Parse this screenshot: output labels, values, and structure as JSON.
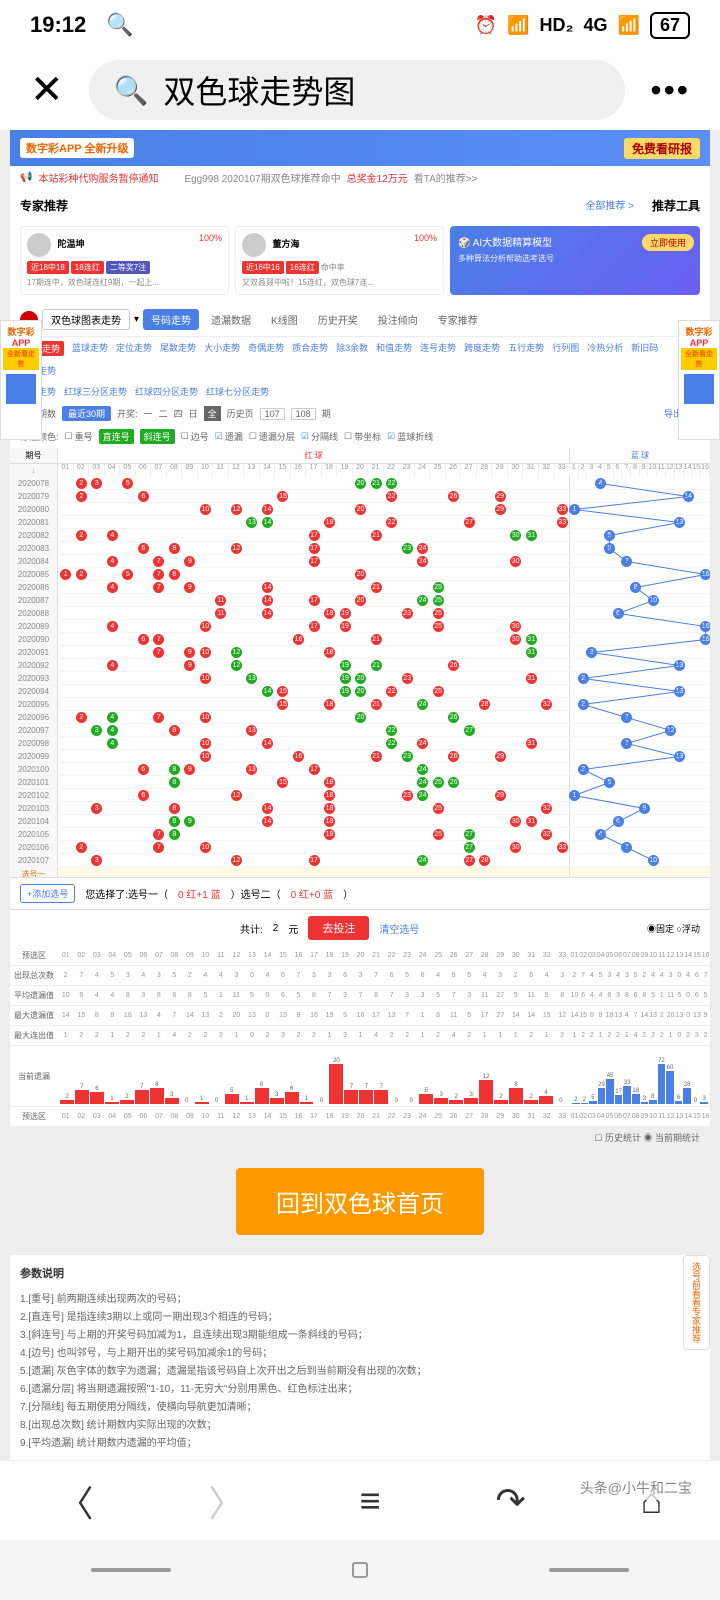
{
  "status": {
    "time": "19:12",
    "hd": "HD₂",
    "net": "4G",
    "battery": "67"
  },
  "search": {
    "placeholder": "双色球走势图"
  },
  "banner": {
    "app": "数字彩APP 全新升级",
    "promo": "免费看研报"
  },
  "notice": {
    "left": "本站彩种代购服务暂停通知",
    "mid": "Egg998 2020107期双色球推荐命中",
    "prize": "总奖金12万元",
    "link": "看TA的推荐>>"
  },
  "expert": {
    "title": "专家推荐",
    "all": "全部推荐 >",
    "tool": "推荐工具"
  },
  "experts": [
    {
      "name": "陀温坤",
      "pct": "100%",
      "tag1": "近18中18",
      "tag2": "18连红",
      "tag3": "二等奖7注",
      "desc": "17期连中，双色球连红9期，一起上..."
    },
    {
      "name": "董方海",
      "pct": "100%",
      "tag1": "近16中16",
      "tag2": "16连红",
      "sub": "命中率",
      "desc": "又双叒叕中啦！15连红，双色球7连..."
    }
  ],
  "ai": {
    "title": "AI大数据精算模型",
    "btn": "立即使用",
    "sub": "多种算法分析帮助选考选号"
  },
  "sideAd": {
    "line1": "数字彩",
    "line2": "APP",
    "line3": "全新看走势"
  },
  "tabs": {
    "selector": "双色球图表走势",
    "items": [
      "号码走势",
      "遗漏数据",
      "K线图",
      "历史开奖",
      "投注倾向",
      "专家推荐"
    ]
  },
  "subTabs": [
    "基本走势",
    "蓝球走势",
    "定位走势",
    "尾数走势",
    "大小走势",
    "奇偶走势",
    "质合走势",
    "除3余数",
    "和值走势",
    "连号走势",
    "跨度走势",
    "五行走势",
    "行列图",
    "冷热分析",
    "新旧码",
    "重号走势"
  ],
  "subTabs2": [
    "红蓝走势",
    "红球三分区走势",
    "红球四分区走势",
    "红球七分区走势"
  ],
  "filters": {
    "period": "显示期数",
    "sel": "最近30期",
    "open": "开奖:",
    "hist": "历史页",
    "p1": "107",
    "p2": "108",
    "next": "期",
    "export": "导出走势"
  },
  "markLabel": "标注颜色:",
  "marks": [
    "重号",
    "直连号",
    "斜连号",
    "边号",
    "遗漏",
    "遗漏分层",
    "分隔线",
    "带坐标",
    "蓝球折线"
  ],
  "chartHead": {
    "period": "期号",
    "red": "红 球",
    "blue": "蓝 球"
  },
  "periods": [
    "2020078",
    "2020079",
    "2020080",
    "2020081",
    "2020082",
    "2020083",
    "2020084",
    "2020085",
    "2020086",
    "2020087",
    "2020088",
    "2020089",
    "2020090",
    "2020091",
    "2020092",
    "2020093",
    "2020094",
    "2020095",
    "2020096",
    "2020097",
    "2020098",
    "2020099",
    "2020100",
    "2020101",
    "2020102",
    "2020103",
    "2020104",
    "2020105",
    "2020106",
    "2020107"
  ],
  "selRows": [
    "选号一",
    "选号二"
  ],
  "redBalls": [
    [
      [
        2,
        "r"
      ],
      [
        3,
        "r"
      ],
      [
        5,
        "r"
      ],
      [
        20,
        "g"
      ],
      [
        21,
        "g"
      ],
      [
        22,
        "g"
      ]
    ],
    [
      [
        2,
        "r"
      ],
      [
        6,
        "r"
      ],
      [
        15,
        "r"
      ],
      [
        22,
        "r"
      ],
      [
        26,
        "r"
      ],
      [
        29,
        "r"
      ]
    ],
    [
      [
        10,
        "r"
      ],
      [
        12,
        "r"
      ],
      [
        14,
        "r"
      ],
      [
        20,
        "r"
      ],
      [
        29,
        "r"
      ],
      [
        33,
        "r"
      ]
    ],
    [
      [
        13,
        "g"
      ],
      [
        14,
        "g"
      ],
      [
        18,
        "r"
      ],
      [
        22,
        "r"
      ],
      [
        27,
        "r"
      ],
      [
        33,
        "r"
      ]
    ],
    [
      [
        2,
        "r"
      ],
      [
        4,
        "r"
      ],
      [
        17,
        "r"
      ],
      [
        21,
        "r"
      ],
      [
        30,
        "g"
      ],
      [
        31,
        "g"
      ]
    ],
    [
      [
        6,
        "r"
      ],
      [
        8,
        "r"
      ],
      [
        12,
        "r"
      ],
      [
        17,
        "r"
      ],
      [
        23,
        "g"
      ],
      [
        24,
        "r"
      ]
    ],
    [
      [
        4,
        "r"
      ],
      [
        7,
        "r"
      ],
      [
        9,
        "r"
      ],
      [
        17,
        "r"
      ],
      [
        24,
        "r"
      ],
      [
        30,
        "r"
      ]
    ],
    [
      [
        1,
        "r"
      ],
      [
        2,
        "r"
      ],
      [
        5,
        "r"
      ],
      [
        7,
        "r"
      ],
      [
        8,
        "r"
      ],
      [
        20,
        "r"
      ]
    ],
    [
      [
        4,
        "r"
      ],
      [
        7,
        "r"
      ],
      [
        9,
        "r"
      ],
      [
        14,
        "r"
      ],
      [
        21,
        "r"
      ],
      [
        25,
        "g"
      ]
    ],
    [
      [
        11,
        "r"
      ],
      [
        14,
        "r"
      ],
      [
        17,
        "r"
      ],
      [
        20,
        "r"
      ],
      [
        24,
        "g"
      ],
      [
        25,
        "g"
      ]
    ],
    [
      [
        11,
        "r"
      ],
      [
        14,
        "r"
      ],
      [
        18,
        "r"
      ],
      [
        19,
        "r"
      ],
      [
        23,
        "r"
      ],
      [
        25,
        "r"
      ]
    ],
    [
      [
        4,
        "r"
      ],
      [
        10,
        "r"
      ],
      [
        17,
        "r"
      ],
      [
        19,
        "r"
      ],
      [
        25,
        "r"
      ],
      [
        30,
        "r"
      ]
    ],
    [
      [
        6,
        "r"
      ],
      [
        7,
        "r"
      ],
      [
        16,
        "r"
      ],
      [
        21,
        "r"
      ],
      [
        30,
        "r"
      ],
      [
        31,
        "g"
      ]
    ],
    [
      [
        7,
        "r"
      ],
      [
        9,
        "r"
      ],
      [
        10,
        "r"
      ],
      [
        12,
        "g"
      ],
      [
        18,
        "r"
      ],
      [
        31,
        "g"
      ]
    ],
    [
      [
        4,
        "r"
      ],
      [
        9,
        "r"
      ],
      [
        12,
        "g"
      ],
      [
        19,
        "g"
      ],
      [
        21,
        "g"
      ],
      [
        26,
        "r"
      ]
    ],
    [
      [
        10,
        "r"
      ],
      [
        13,
        "g"
      ],
      [
        19,
        "g"
      ],
      [
        20,
        "g"
      ],
      [
        23,
        "r"
      ],
      [
        31,
        "r"
      ]
    ],
    [
      [
        14,
        "g"
      ],
      [
        15,
        "r"
      ],
      [
        19,
        "g"
      ],
      [
        20,
        "g"
      ],
      [
        22,
        "r"
      ],
      [
        25,
        "r"
      ]
    ],
    [
      [
        15,
        "r"
      ],
      [
        18,
        "r"
      ],
      [
        21,
        "r"
      ],
      [
        24,
        "g"
      ],
      [
        28,
        "r"
      ],
      [
        32,
        "r"
      ]
    ],
    [
      [
        2,
        "r"
      ],
      [
        4,
        "g"
      ],
      [
        7,
        "r"
      ],
      [
        10,
        "r"
      ],
      [
        20,
        "g"
      ],
      [
        26,
        "g"
      ]
    ],
    [
      [
        3,
        "g"
      ],
      [
        4,
        "g"
      ],
      [
        8,
        "r"
      ],
      [
        13,
        "r"
      ],
      [
        22,
        "g"
      ],
      [
        27,
        "g"
      ]
    ],
    [
      [
        4,
        "g"
      ],
      [
        10,
        "r"
      ],
      [
        14,
        "r"
      ],
      [
        22,
        "g"
      ],
      [
        24,
        "r"
      ],
      [
        31,
        "r"
      ]
    ],
    [
      [
        10,
        "r"
      ],
      [
        16,
        "r"
      ],
      [
        21,
        "r"
      ],
      [
        23,
        "g"
      ],
      [
        26,
        "r"
      ],
      [
        29,
        "r"
      ]
    ],
    [
      [
        6,
        "r"
      ],
      [
        8,
        "g"
      ],
      [
        9,
        "r"
      ],
      [
        13,
        "r"
      ],
      [
        17,
        "r"
      ],
      [
        24,
        "g"
      ]
    ],
    [
      [
        8,
        "g"
      ],
      [
        15,
        "r"
      ],
      [
        18,
        "r"
      ],
      [
        24,
        "g"
      ],
      [
        25,
        "g"
      ],
      [
        26,
        "g"
      ]
    ],
    [
      [
        6,
        "r"
      ],
      [
        12,
        "r"
      ],
      [
        18,
        "r"
      ],
      [
        23,
        "r"
      ],
      [
        24,
        "g"
      ],
      [
        29,
        "r"
      ]
    ],
    [
      [
        3,
        "r"
      ],
      [
        8,
        "r"
      ],
      [
        14,
        "r"
      ],
      [
        18,
        "r"
      ],
      [
        25,
        "r"
      ],
      [
        32,
        "r"
      ]
    ],
    [
      [
        8,
        "g"
      ],
      [
        9,
        "g"
      ],
      [
        14,
        "r"
      ],
      [
        18,
        "r"
      ],
      [
        30,
        "r"
      ],
      [
        31,
        "r"
      ]
    ],
    [
      [
        7,
        "r"
      ],
      [
        8,
        "g"
      ],
      [
        18,
        "r"
      ],
      [
        25,
        "r"
      ],
      [
        27,
        "g"
      ],
      [
        32,
        "r"
      ]
    ],
    [
      [
        2,
        "r"
      ],
      [
        7,
        "r"
      ],
      [
        10,
        "r"
      ],
      [
        27,
        "g"
      ],
      [
        30,
        "r"
      ],
      [
        33,
        "r"
      ]
    ],
    [
      [
        3,
        "r"
      ],
      [
        12,
        "r"
      ],
      [
        17,
        "r"
      ],
      [
        24,
        "g"
      ],
      [
        27,
        "r"
      ],
      [
        28,
        "r"
      ]
    ]
  ],
  "blueBalls": [
    4,
    14,
    1,
    13,
    5,
    5,
    7,
    16,
    8,
    10,
    6,
    16,
    16,
    3,
    13,
    2,
    13,
    2,
    7,
    12,
    7,
    13,
    2,
    5,
    1,
    9,
    6,
    4,
    7,
    10
  ],
  "selection": {
    "add": "+添加选号",
    "text": "您选择了:选号一（",
    "r1": "0 红+1 蓝",
    "mid": "）选号二（",
    "r2": "0 红+0 蓝",
    "end": "）",
    "total": "共计: ",
    "count": "2",
    "unit": "元",
    "bet": "去投注",
    "clear": "清空选号",
    "fixed": "固定",
    "float": "浮动"
  },
  "statsLabels": [
    "预选区",
    "出现总次数",
    "平均遗漏值",
    "最大遗漏值",
    "最大连出值",
    "当前遗漏",
    "预选区"
  ],
  "statsData": {
    "appear": [
      2,
      7,
      4,
      5,
      3,
      4,
      3,
      5,
      2,
      4,
      4,
      3,
      0,
      4,
      6,
      7,
      3,
      3,
      6,
      3,
      7,
      6,
      5,
      6,
      4,
      9,
      5,
      4,
      3,
      2,
      6,
      4,
      3,
      3
    ],
    "avgMiss": [
      10,
      6,
      4,
      4,
      8,
      3,
      8,
      6,
      8,
      5,
      1,
      11,
      5,
      0,
      6,
      5,
      8,
      7,
      3,
      7,
      8,
      7,
      3,
      3,
      5,
      7,
      3,
      11,
      27,
      5,
      11,
      5,
      8,
      7
    ],
    "maxMiss": [
      14,
      15,
      8,
      8,
      18,
      13,
      4,
      7,
      14,
      13,
      2,
      20,
      13,
      0,
      13,
      9,
      16,
      19,
      5,
      16,
      17,
      13,
      7,
      1,
      8,
      11,
      5,
      17,
      27,
      14,
      14,
      15,
      12,
      20
    ],
    "maxConn": [
      1,
      2,
      2,
      1,
      2,
      2,
      1,
      4,
      2,
      2,
      2,
      1,
      0,
      2,
      3,
      2,
      2,
      1,
      3,
      1,
      4,
      2,
      2,
      1,
      2,
      4,
      2,
      1,
      1,
      1,
      2,
      1,
      2,
      1
    ]
  },
  "histogram": {
    "red": [
      2,
      7,
      6,
      1,
      2,
      7,
      8,
      3,
      0,
      1,
      0,
      5,
      1,
      8,
      3,
      6,
      1,
      0,
      20,
      7,
      7,
      7,
      0,
      0,
      5,
      3,
      2,
      3,
      12,
      2,
      8,
      2,
      4,
      0
    ],
    "blue": [
      2,
      2,
      5,
      29,
      45,
      17,
      33,
      18,
      3,
      8,
      72,
      60,
      6,
      28,
      0,
      3
    ]
  },
  "legend": {
    "hist": "历史统计",
    "curr": "当前期统计"
  },
  "backBtn": "回到双色球首页",
  "notes": {
    "title": "参数说明",
    "items": [
      "1.[重号] 前两期连续出现两次的号码；",
      "2.[直连号] 是指连续3期以上或同一期出现3个相连的号码；",
      "3.[斜连号] 与上期的开奖号码加减为1，且连续出现3期能组成一条斜线的号码；",
      "4.[边号] 也叫邻号，与上期开出的奖号码加减余1的号码；",
      "5.[遗漏] 灰色字体的数字为遗漏；遗漏是指该号码自上次开出之后到当前期没有出现的次数；",
      "6.[遗漏分层] 将当期遗漏按照\"1-10，11-无穷大\"分别用黑色、红色标注出来；",
      "7.[分隔线] 每五期使用分隔线，使横向导航更加清晰；",
      "8.[出现总次数] 统计期数内实际出现的次数；",
      "9.[平均遗漏] 统计期数内遗漏的平均值；"
    ]
  },
  "floatBtn": "选号前看看专家推荐",
  "watermark": "头条@小牛和二宝"
}
